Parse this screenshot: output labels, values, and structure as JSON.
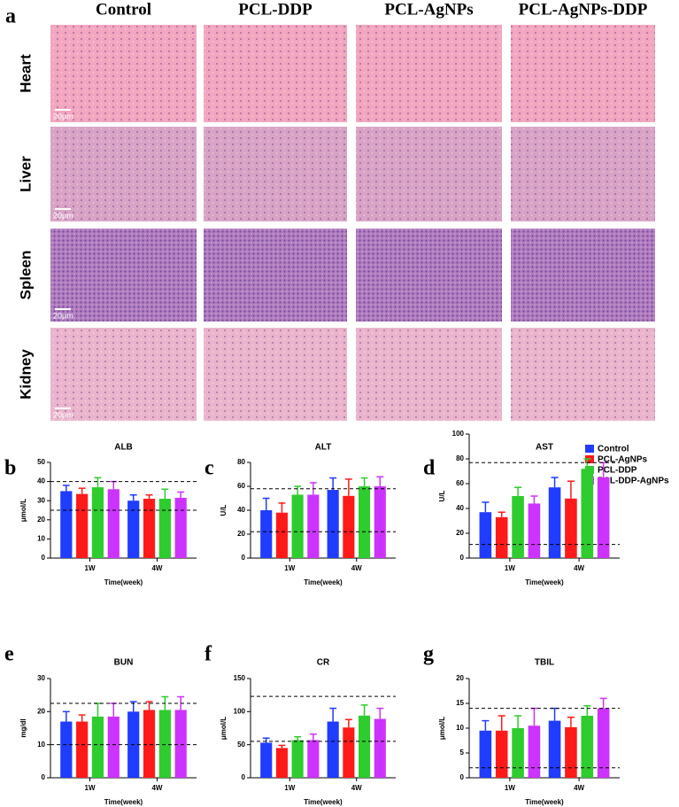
{
  "histology": {
    "panel_label": "a",
    "columns": [
      "Control",
      "PCL-DDP",
      "PCL-AgNPs",
      "PCL-AgNPs-DDP"
    ],
    "rows": [
      "Heart",
      "Liver",
      "Spleen",
      "Kidney"
    ],
    "scale_bar": "20μm"
  },
  "legend": {
    "items": [
      {
        "name": "Control",
        "color": "#1f3cff"
      },
      {
        "name": "PCL-AgNPs",
        "color": "#ff1a1a"
      },
      {
        "name": "PCL-DDP",
        "color": "#2ecc2e"
      },
      {
        "name": "PCL-DDP-AgNPs",
        "color": "#cc33ff"
      }
    ]
  },
  "chart_data": [
    {
      "type": "bar",
      "panel": "b",
      "title": "ALB",
      "y_label": "μmol/L",
      "x_label": "Time(week)",
      "categories": [
        "1W",
        "4W"
      ],
      "ylim": [
        0,
        50
      ],
      "yticks": [
        0,
        10,
        20,
        30,
        40,
        50
      ],
      "reference_lines": [
        40,
        25
      ],
      "series": [
        {
          "values": [
            35,
            30
          ],
          "errors": [
            3,
            3
          ]
        },
        {
          "values": [
            33.5,
            31
          ],
          "errors": [
            3,
            2
          ]
        },
        {
          "values": [
            37,
            31
          ],
          "errors": [
            5,
            5
          ]
        },
        {
          "values": [
            36,
            31.5
          ],
          "errors": [
            4,
            3
          ]
        }
      ]
    },
    {
      "type": "bar",
      "panel": "c",
      "title": "ALT",
      "y_label": "U/L",
      "x_label": "Time(week)",
      "categories": [
        "1W",
        "4W"
      ],
      "ylim": [
        0,
        80
      ],
      "yticks": [
        0,
        20,
        40,
        60,
        80
      ],
      "reference_lines": [
        58,
        22
      ],
      "series": [
        {
          "values": [
            40,
            57
          ],
          "errors": [
            10,
            10
          ]
        },
        {
          "values": [
            38,
            52
          ],
          "errors": [
            8,
            14
          ]
        },
        {
          "values": [
            53,
            60
          ],
          "errors": [
            7,
            7
          ]
        },
        {
          "values": [
            53,
            60
          ],
          "errors": [
            10,
            8
          ]
        }
      ]
    },
    {
      "type": "bar",
      "panel": "d",
      "title": "AST",
      "y_label": "U/L",
      "x_label": "Time(week)",
      "categories": [
        "1W",
        "4W"
      ],
      "ylim": [
        0,
        100
      ],
      "yticks": [
        0,
        20,
        40,
        60,
        80,
        100
      ],
      "reference_lines": [
        77,
        11
      ],
      "series": [
        {
          "values": [
            37,
            57
          ],
          "errors": [
            8,
            8
          ]
        },
        {
          "values": [
            33,
            48
          ],
          "errors": [
            4,
            14
          ]
        },
        {
          "values": [
            50,
            72
          ],
          "errors": [
            7,
            8
          ]
        },
        {
          "values": [
            44,
            65
          ],
          "errors": [
            6,
            12
          ]
        }
      ]
    },
    {
      "type": "bar",
      "panel": "e",
      "title": "BUN",
      "y_label": "mg/dl",
      "x_label": "Time(week)",
      "categories": [
        "1W",
        "4W"
      ],
      "ylim": [
        0,
        30
      ],
      "yticks": [
        0,
        10,
        20,
        30
      ],
      "reference_lines": [
        22.5,
        10
      ],
      "series": [
        {
          "values": [
            17,
            20
          ],
          "errors": [
            3,
            3
          ]
        },
        {
          "values": [
            17,
            20.5
          ],
          "errors": [
            2,
            2.5
          ]
        },
        {
          "values": [
            18.5,
            20.5
          ],
          "errors": [
            4,
            4
          ]
        },
        {
          "values": [
            18.5,
            20.5
          ],
          "errors": [
            4,
            4
          ]
        }
      ]
    },
    {
      "type": "bar",
      "panel": "f",
      "title": "CR",
      "y_label": "μmol/L",
      "x_label": "Time(week)",
      "categories": [
        "1W",
        "4W"
      ],
      "ylim": [
        0,
        150
      ],
      "yticks": [
        0,
        50,
        100,
        150
      ],
      "reference_lines": [
        123,
        55
      ],
      "series": [
        {
          "values": [
            53,
            85
          ],
          "errors": [
            7,
            20
          ]
        },
        {
          "values": [
            45,
            76
          ],
          "errors": [
            4,
            12
          ]
        },
        {
          "values": [
            57,
            94
          ],
          "errors": [
            5,
            16
          ]
        },
        {
          "values": [
            57,
            89
          ],
          "errors": [
            9,
            16
          ]
        }
      ]
    },
    {
      "type": "bar",
      "panel": "g",
      "title": "TBIL",
      "y_label": "μmol/L",
      "x_label": "Time(week)",
      "categories": [
        "1W",
        "4W"
      ],
      "ylim": [
        0,
        20
      ],
      "yticks": [
        0,
        5,
        10,
        15,
        20
      ],
      "reference_lines": [
        14,
        2
      ],
      "series": [
        {
          "values": [
            9.5,
            11.5
          ],
          "errors": [
            2,
            2.5
          ]
        },
        {
          "values": [
            9.5,
            10.2
          ],
          "errors": [
            3,
            2
          ]
        },
        {
          "values": [
            10,
            12.5
          ],
          "errors": [
            2.5,
            2
          ]
        },
        {
          "values": [
            10.5,
            14
          ],
          "errors": [
            3.5,
            2
          ]
        }
      ]
    }
  ]
}
